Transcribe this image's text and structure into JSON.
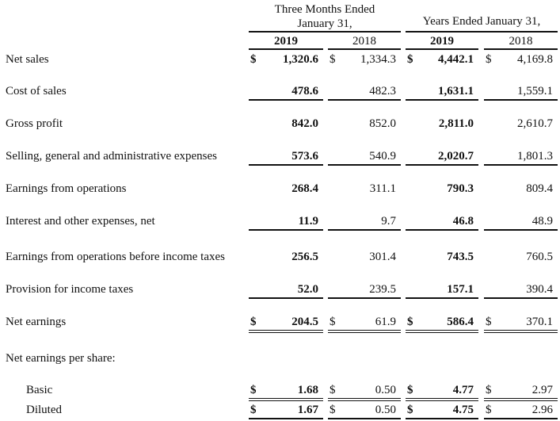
{
  "header": {
    "three_months_line1": "Three Months Ended",
    "three_months_line2": "January 31,",
    "years": "Years Ended January 31,",
    "col_years": [
      "2019",
      "2018",
      "2019",
      "2018"
    ]
  },
  "currency_symbol": "$",
  "rows": [
    {
      "label": "Net sales",
      "values": [
        "1,320.6",
        "1,334.3",
        "4,442.1",
        "4,169.8"
      ],
      "dollar": true,
      "rule": "none"
    },
    {
      "label": "Cost of sales",
      "values": [
        "478.6",
        "482.3",
        "1,631.1",
        "1,559.1"
      ],
      "dollar": false,
      "rule": "single"
    },
    {
      "label": "Gross profit",
      "values": [
        "842.0",
        "852.0",
        "2,811.0",
        "2,610.7"
      ],
      "dollar": false,
      "rule": "none"
    },
    {
      "label": "Selling, general and administrative expenses",
      "values": [
        "573.6",
        "540.9",
        "2,020.7",
        "1,801.3"
      ],
      "dollar": false,
      "rule": "single"
    },
    {
      "label": "Earnings from operations",
      "values": [
        "268.4",
        "311.1",
        "790.3",
        "809.4"
      ],
      "dollar": false,
      "rule": "none"
    },
    {
      "label": "Interest and other expenses, net",
      "values": [
        "11.9",
        "9.7",
        "46.8",
        "48.9"
      ],
      "dollar": false,
      "rule": "single"
    },
    {
      "label": "Earnings from operations before income taxes",
      "values": [
        "256.5",
        "301.4",
        "743.5",
        "760.5"
      ],
      "dollar": false,
      "rule": "none"
    },
    {
      "label": "Provision for income taxes",
      "values": [
        "52.0",
        "239.5",
        "157.1",
        "390.4"
      ],
      "dollar": false,
      "rule": "single"
    },
    {
      "label": "Net earnings",
      "values": [
        "204.5",
        "61.9",
        "586.4",
        "370.1"
      ],
      "dollar": true,
      "rule": "double"
    },
    {
      "label": "Net earnings per share:",
      "values": [],
      "dollar": false,
      "rule": "none"
    },
    {
      "label": "Basic",
      "values": [
        "1.68",
        "0.50",
        "4.77",
        "2.97"
      ],
      "dollar": true,
      "rule": "double",
      "indent": true
    },
    {
      "label": "Diluted",
      "values": [
        "1.67",
        "0.50",
        "4.75",
        "2.96"
      ],
      "dollar": true,
      "rule": "single",
      "indent": true
    }
  ]
}
